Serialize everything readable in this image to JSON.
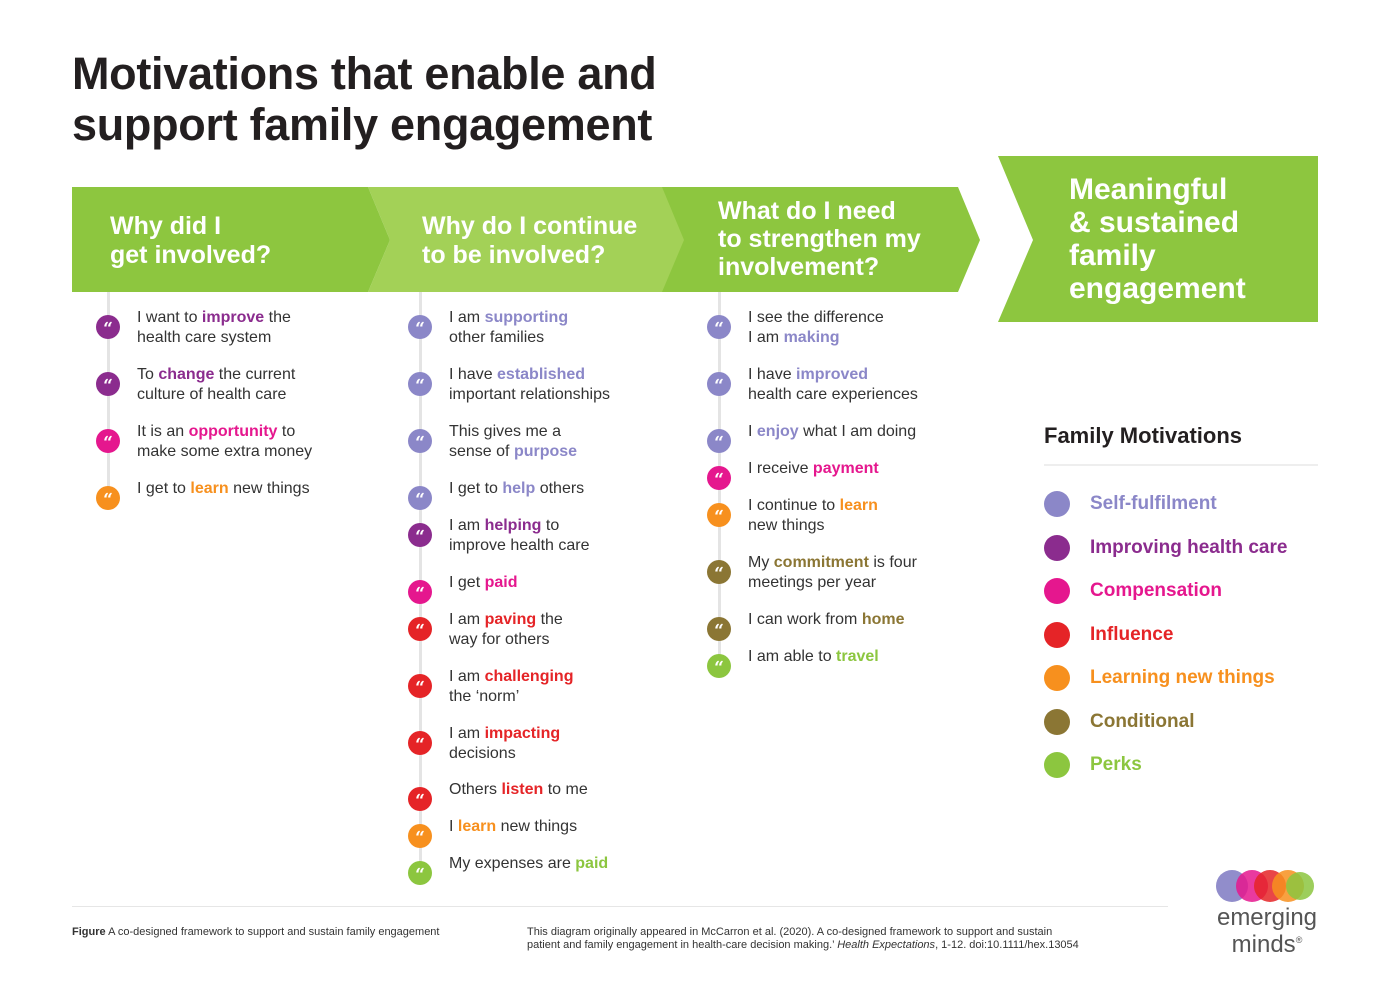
{
  "title_line1": "Motivations that enable and",
  "title_line2": "support family engagement",
  "colors": {
    "arrow_green": "#8dc63f",
    "arrow_green_light": "#a5d25a",
    "self_fulfilment": "#8b87c8",
    "improving_health_care": "#8b2c8e",
    "compensation": "#e5178e",
    "influence": "#e52427",
    "learning_new_things": "#f7901e",
    "conditional": "#8b7634",
    "perks": "#8cc63f"
  },
  "headers": [
    {
      "lines": [
        "Why did I",
        "get involved?"
      ]
    },
    {
      "lines": [
        "Why do I continue",
        "to be involved?"
      ]
    },
    {
      "lines": [
        "What do I need",
        "to strengthen my",
        "involvement?"
      ]
    }
  ],
  "final_header": {
    "lines": [
      "Meaningful",
      "& sustained",
      "family",
      "engagement"
    ]
  },
  "icon_glyph": "“",
  "columns": [
    {
      "items": [
        {
          "category": "improving_health_care",
          "parts": [
            "I want to ",
            "improve",
            " the",
            "health care system"
          ]
        },
        {
          "category": "improving_health_care",
          "parts": [
            "To ",
            "change",
            " the current",
            "culture of health care"
          ]
        },
        {
          "category": "compensation",
          "parts": [
            "It is an ",
            "opportunity",
            " to",
            "make some extra money"
          ]
        },
        {
          "category": "learning_new_things",
          "parts": [
            "I get to ",
            "learn",
            " new things",
            ""
          ]
        }
      ]
    },
    {
      "items": [
        {
          "category": "self_fulfilment",
          "parts": [
            "I am ",
            "supporting",
            "",
            "other families"
          ]
        },
        {
          "category": "self_fulfilment",
          "parts": [
            "I have ",
            "established",
            "",
            "important relationships"
          ]
        },
        {
          "category": "self_fulfilment",
          "parts": [
            "This gives me a",
            "",
            "",
            "sense of |purpose"
          ]
        },
        {
          "category": "self_fulfilment",
          "parts": [
            "I get to ",
            "help",
            " others",
            ""
          ]
        },
        {
          "category": "improving_health_care",
          "parts": [
            "I am ",
            "helping",
            " to",
            "improve health care"
          ]
        },
        {
          "category": "compensation",
          "parts": [
            "I get ",
            "paid",
            "",
            ""
          ]
        },
        {
          "category": "influence",
          "parts": [
            "I am ",
            "paving",
            " the",
            "way for others"
          ]
        },
        {
          "category": "influence",
          "parts": [
            "I am ",
            "challenging",
            "",
            "the ‘norm’"
          ]
        },
        {
          "category": "influence",
          "parts": [
            "I am ",
            "impacting",
            "",
            "decisions"
          ]
        },
        {
          "category": "influence",
          "parts": [
            "Others ",
            "listen",
            " to me",
            ""
          ]
        },
        {
          "category": "learning_new_things",
          "parts": [
            "I ",
            "learn",
            " new things",
            ""
          ]
        },
        {
          "category": "perks",
          "parts": [
            "My expenses are ",
            "paid",
            "",
            ""
          ]
        }
      ]
    },
    {
      "items": [
        {
          "category": "self_fulfilment",
          "parts": [
            "I see the difference",
            "",
            "",
            "I am |making"
          ]
        },
        {
          "category": "self_fulfilment",
          "parts": [
            "I have ",
            "improved",
            "",
            "health care experiences"
          ]
        },
        {
          "category": "self_fulfilment",
          "parts": [
            "I ",
            "enjoy",
            " what I am doing",
            ""
          ]
        },
        {
          "category": "compensation",
          "parts": [
            "I receive ",
            "payment",
            "",
            ""
          ]
        },
        {
          "category": "learning_new_things",
          "parts": [
            "I continue to ",
            "learn",
            "",
            "new things"
          ]
        },
        {
          "category": "conditional",
          "parts": [
            "My ",
            "commitment",
            " is four",
            "meetings per year"
          ]
        },
        {
          "category": "conditional",
          "parts": [
            "I can work from ",
            "home",
            "",
            ""
          ]
        },
        {
          "category": "perks",
          "parts": [
            "I am able to ",
            "travel",
            "",
            ""
          ]
        }
      ]
    }
  ],
  "legend": {
    "title": "Family Motivations",
    "items": [
      {
        "category": "self_fulfilment",
        "label": "Self-fulfilment"
      },
      {
        "category": "improving_health_care",
        "label": "Improving health care"
      },
      {
        "category": "compensation",
        "label": "Compensation"
      },
      {
        "category": "influence",
        "label": "Influence"
      },
      {
        "category": "learning_new_things",
        "label": "Learning new things"
      },
      {
        "category": "conditional",
        "label": "Conditional"
      },
      {
        "category": "perks",
        "label": "Perks"
      }
    ]
  },
  "footer": {
    "figure_label": "Figure",
    "figure_caption": " A co-designed framework to support and sustain family engagement",
    "citation_line1": "This diagram originally appeared in McCarron et al. (2020). A co-designed framework to support and sustain",
    "citation_line2_a": "patient and family engagement in health-care decision making.’ ",
    "citation_journal": "Health Expectations",
    "citation_line2_b": ", 1-12. doi:10.1111/hex.13054"
  },
  "logo": {
    "line1": "emerging",
    "line2": "minds",
    "mark": "®"
  }
}
